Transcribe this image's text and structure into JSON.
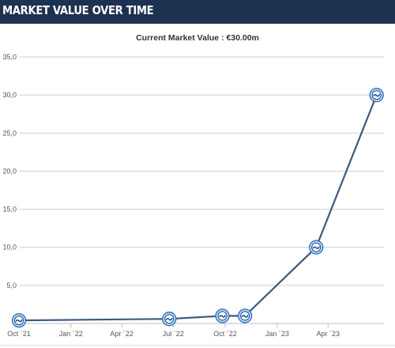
{
  "header": {
    "title": "MARKET VALUE OVER TIME"
  },
  "chart_data": {
    "type": "line",
    "title": "",
    "subtitle": "Current Market Value : €30.00m",
    "xlabel": "",
    "ylabel": "",
    "ylim": [
      0,
      35
    ],
    "yticks": [
      "35,0",
      "30,0",
      "25,0",
      "20,0",
      "15,0",
      "10,0",
      "5,0"
    ],
    "xticks": [
      {
        "date": "2021-10-01",
        "label": "Oct ´21"
      },
      {
        "date": "2022-01-01",
        "label": "Jan ´22"
      },
      {
        "date": "2022-04-01",
        "label": "Apr ´22"
      },
      {
        "date": "2022-07-01",
        "label": "Jul ´22"
      },
      {
        "date": "2022-10-01",
        "label": "Oct ´22"
      },
      {
        "date": "2023-01-01",
        "label": "Jan ´23"
      },
      {
        "date": "2023-04-01",
        "label": "Apr ´23"
      }
    ],
    "grid": true,
    "series": [
      {
        "color": "#3c5a80",
        "points": [
          {
            "date": "2021-10-01",
            "value": 0.4
          },
          {
            "date": "2022-06-24",
            "value": 0.6
          },
          {
            "date": "2022-09-26",
            "value": 1.0
          },
          {
            "date": "2022-11-05",
            "value": 1.0
          },
          {
            "date": "2023-03-11",
            "value": 10.0
          },
          {
            "date": "2023-06-26",
            "value": 30.0
          }
        ]
      }
    ]
  },
  "colors": {
    "header_bg": "#1d3150",
    "line": "#3c5a80",
    "marker_ring": "#2a6fc0",
    "grid": "#cfcfcf"
  },
  "marker_icon": "club-crest-icon"
}
